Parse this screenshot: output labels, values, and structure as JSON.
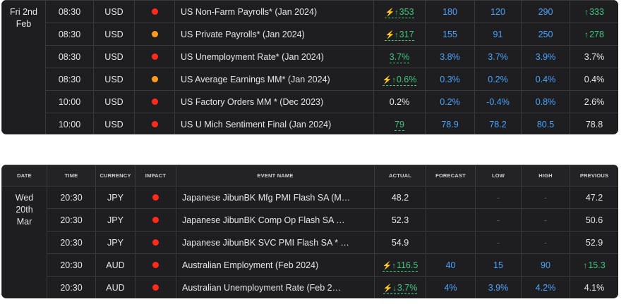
{
  "colors": {
    "red": "#ff2a1a",
    "orange": "#ff9a1a",
    "blue": "#4aa3ff",
    "green": "#3fc77d"
  },
  "panel1": {
    "date_line1": "Fri 2nd",
    "date_line2": "Feb",
    "rows": [
      {
        "time": "08:30",
        "currency": "USD",
        "impact": "red",
        "event": "US Non-Farm Payrolls* (Jan 2024)",
        "actual": "353",
        "actual_icons": "⚡↑",
        "forecast": "180",
        "low": "120",
        "high": "290",
        "previous": "333",
        "previous_icon": "↑"
      },
      {
        "time": "08:30",
        "currency": "USD",
        "impact": "orange",
        "event": "US Private Payrolls* (Jan 2024)",
        "actual": "317",
        "actual_icons": "⚡↑",
        "forecast": "155",
        "low": "91",
        "high": "250",
        "previous": "278",
        "previous_icon": "↑"
      },
      {
        "time": "08:30",
        "currency": "USD",
        "impact": "red",
        "event": "US Unemployment Rate* (Jan 2024)",
        "actual": "3.7%",
        "actual_icons": "",
        "forecast": "3.8%",
        "low": "3.7%",
        "high": "3.9%",
        "previous": "3.7%",
        "previous_icon": ""
      },
      {
        "time": "08:30",
        "currency": "USD",
        "impact": "orange",
        "event": "US Average Earnings MM* (Jan 2024)",
        "actual": "0.6%",
        "actual_icons": "⚡↑",
        "forecast": "0.3%",
        "low": "0.2%",
        "high": "0.4%",
        "previous": "0.4%",
        "previous_icon": ""
      },
      {
        "time": "10:00",
        "currency": "USD",
        "impact": "red",
        "event": "US Factory Orders MM * (Dec 2023)",
        "actual": "0.2%",
        "actual_icons": "",
        "forecast": "0.2%",
        "low": "-0.4%",
        "high": "0.8%",
        "previous": "2.6%",
        "previous_icon": ""
      },
      {
        "time": "10:00",
        "currency": "USD",
        "impact": "red",
        "event": "US U Mich Sentiment Final (Jan 2024)",
        "actual": "79",
        "actual_icons": "",
        "forecast": "78.9",
        "low": "78.2",
        "high": "80.5",
        "previous": "78.8",
        "previous_icon": ""
      }
    ]
  },
  "panel2": {
    "headers": {
      "date": "DATE",
      "time": "TIME",
      "currency": "CURRENCY",
      "impact": "IMPACT",
      "event": "EVENT NAME",
      "actual": "ACTUAL",
      "forecast": "FORECAST",
      "low": "LOW",
      "high": "HIGH",
      "previous": "PREVIOUS"
    },
    "date_line1": "Wed",
    "date_line2": "20th",
    "date_line3": "Mar",
    "rows": [
      {
        "time": "20:30",
        "currency": "JPY",
        "impact": "red",
        "event": "Japanese JibunBK Mfg PMI Flash SA (M…",
        "actual": "48.2",
        "actual_icons": "",
        "forecast": "",
        "low": "-",
        "high": "-",
        "previous": "47.2",
        "previous_icon": ""
      },
      {
        "time": "20:30",
        "currency": "JPY",
        "impact": "red",
        "event": "Japanese JibunBK Comp Op Flash SA …",
        "actual": "52.3",
        "actual_icons": "",
        "forecast": "",
        "low": "-",
        "high": "-",
        "previous": "50.6",
        "previous_icon": ""
      },
      {
        "time": "20:30",
        "currency": "JPY",
        "impact": "red",
        "event": "Japanese JibunBK SVC PMI Flash SA * …",
        "actual": "54.9",
        "actual_icons": "",
        "forecast": "",
        "low": "-",
        "high": "-",
        "previous": "52.9",
        "previous_icon": ""
      },
      {
        "time": "20:30",
        "currency": "AUD",
        "impact": "red",
        "event": "Australian Employment (Feb 2024)",
        "actual": "116.5",
        "actual_icons": "⚡↑",
        "forecast": "40",
        "low": "15",
        "high": "90",
        "previous": "15.3",
        "previous_icon": "↑"
      },
      {
        "time": "20:30",
        "currency": "AUD",
        "impact": "red",
        "event": "Australian Unemployment Rate (Feb 2…",
        "actual": "3.7%",
        "actual_icons": "⚡↓",
        "forecast": "4%",
        "low": "3.9%",
        "high": "4.2%",
        "previous": "4.1%",
        "previous_icon": ""
      }
    ]
  }
}
